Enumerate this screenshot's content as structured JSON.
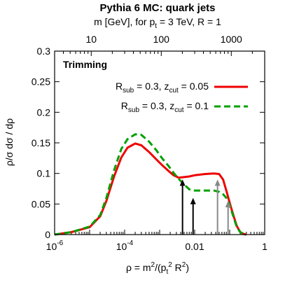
{
  "chart_data": {
    "type": "line",
    "title": "Pythia 6 MC: quark jets",
    "top_axis": {
      "label_main": "m [GeV], for p",
      "label_sub": "t",
      "label_rest": " = 3 TeV, R = 1",
      "ticks": [
        {
          "label": "10",
          "value_m_gev": 10
        },
        {
          "label": "100",
          "value_m_gev": 100
        },
        {
          "label": "1000",
          "value_m_gev": 1000
        }
      ]
    },
    "xlabel": "ρ = m²/(pt² R²)",
    "ylabel": "ρ/σ dσ / dρ",
    "x_scale": "log",
    "xlim": [
      1e-06,
      1
    ],
    "ylim": [
      0,
      0.3
    ],
    "x_ticks": [
      {
        "value": 1e-06,
        "label_base": "10",
        "label_exp": "-6"
      },
      {
        "value": 0.0001,
        "label_base": "10",
        "label_exp": "-4"
      },
      {
        "value": 0.01,
        "label_base": "0.01",
        "label_exp": ""
      },
      {
        "value": 1,
        "label_base": "1",
        "label_exp": ""
      }
    ],
    "y_ticks": [
      "0",
      "0.05",
      "0.1",
      "0.15",
      "0.2",
      "0.25",
      "0.3"
    ],
    "y_tick_values": [
      0,
      0.05,
      0.1,
      0.15,
      0.2,
      0.25,
      0.3
    ],
    "annotation": "Trimming",
    "legend_position": "top-right",
    "series": [
      {
        "legend_parts": {
          "a": "R",
          "a_sub": "sub",
          "b": " = 0.3, z",
          "b_sub": "cut",
          "c": " = 0.05"
        },
        "color": "#ee0000",
        "style": "solid",
        "x": [
          1e-06,
          3e-06,
          1e-05,
          2e-05,
          3e-05,
          5e-05,
          8e-05,
          0.00012,
          0.0002,
          0.0003,
          0.0005,
          0.0008,
          0.0012,
          0.0018,
          0.0025,
          0.0035,
          0.005,
          0.007,
          0.01,
          0.02,
          0.035,
          0.05,
          0.065,
          0.08,
          0.1,
          0.13,
          0.16,
          0.2,
          0.25,
          0.3
        ],
        "y": [
          0,
          0.004,
          0.012,
          0.03,
          0.055,
          0.095,
          0.126,
          0.142,
          0.149,
          0.146,
          0.135,
          0.123,
          0.113,
          0.104,
          0.097,
          0.093,
          0.094,
          0.095,
          0.097,
          0.099,
          0.1,
          0.099,
          0.09,
          0.072,
          0.052,
          0.03,
          0.014,
          0.004,
          0.001,
          0
        ]
      },
      {
        "legend_parts": {
          "a": "R",
          "a_sub": "sub",
          "b": " = 0.3, z",
          "b_sub": "cut",
          "c": " = 0.1"
        },
        "color": "#00a000",
        "style": "dashed",
        "x": [
          1e-06,
          3e-06,
          1e-05,
          2e-05,
          3e-05,
          5e-05,
          8e-05,
          0.00012,
          0.0002,
          0.0003,
          0.0005,
          0.0008,
          0.0012,
          0.0018,
          0.0025,
          0.0035,
          0.005,
          0.007,
          0.01,
          0.02,
          0.035,
          0.05,
          0.065,
          0.08,
          0.1,
          0.13,
          0.16,
          0.2,
          0.25,
          0.3
        ],
        "y": [
          0,
          0.004,
          0.013,
          0.032,
          0.06,
          0.105,
          0.14,
          0.156,
          0.164,
          0.163,
          0.152,
          0.138,
          0.124,
          0.112,
          0.101,
          0.091,
          0.082,
          0.074,
          0.072,
          0.072,
          0.072,
          0.07,
          0.066,
          0.06,
          0.048,
          0.028,
          0.012,
          0.004,
          0.001,
          0
        ]
      }
    ],
    "arrows": [
      {
        "x": 0.0045,
        "y_tip": 0.09,
        "color": "#000000"
      },
      {
        "x": 0.009,
        "y_tip": 0.06,
        "color": "#000000"
      },
      {
        "x": 0.045,
        "y_tip": 0.09,
        "color": "#888888"
      },
      {
        "x": 0.09,
        "y_tip": 0.055,
        "color": "#888888"
      }
    ]
  }
}
